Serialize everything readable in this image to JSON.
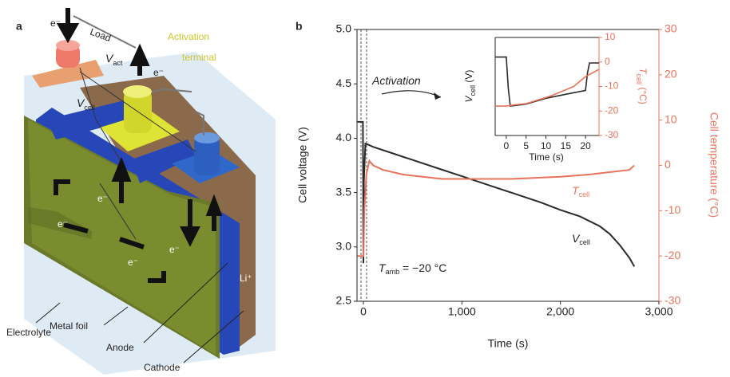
{
  "diagram": {
    "panel": "a",
    "labels": {
      "e1": "e⁻",
      "load": "Load",
      "vact": "V",
      "vact_sub": "act",
      "activation_terminal_1": "Activation",
      "activation_terminal_2": "terminal",
      "e2": "e⁻",
      "vcell": "V",
      "vcell_sub": "cell",
      "e3": "e⁻",
      "e4": "e⁻",
      "e5": "e⁻",
      "e6": "e⁻",
      "li": "Li⁺",
      "electrolyte": "Electrolyte",
      "metal_foil": "Metal foil",
      "anode": "Anode",
      "cathode": "Cathode"
    }
  },
  "panel_b": "b",
  "chart_data": [
    {
      "type": "line",
      "xlabel": "Time (s)",
      "ylabel": "Cell voltage (V)",
      "y2label": "Cell temperature (°C)",
      "xlim": [
        -65,
        3000
      ],
      "xticks": [
        0,
        {
          "value": 1000,
          "label": "1,000"
        },
        {
          "value": 2000,
          "label": "2,000"
        },
        {
          "value": 3000,
          "label": "3,000"
        }
      ],
      "ylim": [
        2.5,
        5.0
      ],
      "yticks": [
        2.5,
        {
          "value": 3,
          "label": "3.0"
        },
        3.5,
        {
          "value": 4,
          "label": "4.0"
        },
        4.5,
        {
          "value": 5,
          "label": "5.0"
        }
      ],
      "y2lim": [
        -30,
        30
      ],
      "y2ticks": [
        -30,
        -20,
        -10,
        0,
        10,
        20,
        30
      ],
      "series": [
        {
          "color": "#2a2a2a",
          "x": [
            -60,
            -5,
            0,
            5,
            20,
            50,
            100,
            300,
            500,
            800,
            1000,
            1300,
            1500,
            1800,
            2000,
            2200,
            2400,
            2500,
            2600,
            2700,
            2750
          ],
          "values": [
            4.15,
            4.15,
            2.85,
            3.6,
            3.95,
            3.94,
            3.92,
            3.86,
            3.8,
            3.71,
            3.65,
            3.56,
            3.5,
            3.41,
            3.34,
            3.28,
            3.19,
            3.12,
            3.02,
            2.9,
            2.82
          ]
        },
        {
          "color": "#e8735a",
          "axis": "y2",
          "x": [
            -60,
            -5,
            0,
            10,
            30,
            60,
            100,
            200,
            400,
            600,
            800,
            1000,
            1500,
            2000,
            2300,
            2500,
            2700,
            2750
          ],
          "values": [
            -20,
            -20,
            -20,
            -10,
            -2,
            1,
            0,
            -1,
            -2,
            -2.5,
            -3,
            -3,
            -3,
            -2.5,
            -2,
            -1.5,
            -1,
            0
          ]
        }
      ],
      "annotations": [
        {
          "text": "Activation"
        },
        {
          "text": "T",
          "sub": "amb",
          "tail": " = −20 °C"
        },
        {
          "text": "V",
          "sub": "cell"
        },
        {
          "text": "T",
          "sub": "cell"
        }
      ]
    },
    {
      "type": "line",
      "xlabel": "Time (s)",
      "ylabel": {
        "text": "V",
        "sub": "cell",
        "tail": " (V)"
      },
      "y2label": {
        "text": "T",
        "sub": "cell",
        "tail": " (°C)"
      },
      "xlim": [
        -2.8,
        23.4
      ],
      "xticks": [
        0,
        5,
        10,
        15,
        20
      ],
      "ylim": [
        2,
        4.5
      ],
      "y2lim": [
        -30,
        10
      ],
      "y2ticks": [
        -30,
        -20,
        -10,
        0,
        10
      ],
      "series": [
        {
          "color": "#2a2a2a",
          "x": [
            -2.8,
            0,
            0.5,
            1,
            5,
            10,
            15,
            20,
            20.5,
            21,
            23.4
          ],
          "values": [
            4.0,
            4.0,
            3.2,
            2.75,
            2.8,
            2.95,
            3.05,
            3.15,
            3.6,
            3.85,
            3.85
          ]
        },
        {
          "color": "#e8735a",
          "axis": "y2",
          "x": [
            -2.8,
            0,
            2,
            5,
            8,
            11,
            14,
            17,
            20,
            23.4
          ],
          "values": [
            -18,
            -18,
            -17.5,
            -17,
            -15.5,
            -14,
            -12,
            -10,
            -6,
            -3
          ]
        }
      ]
    }
  ]
}
